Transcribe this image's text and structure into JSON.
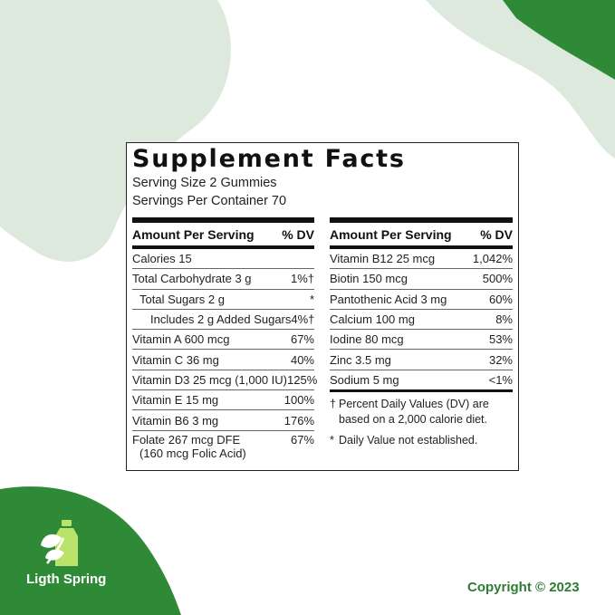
{
  "colors": {
    "light_green": "#dce9dc",
    "dark_green": "#2f8a37",
    "text_green": "#2e7d32"
  },
  "panel": {
    "title": "Supplement Facts",
    "serving_size": "Serving Size 2 Gummies",
    "servings_per_container": "Servings Per Container 70"
  },
  "left": {
    "header_label": "Amount Per Serving",
    "header_dv": "% DV",
    "rows": [
      {
        "name": "Calories 15",
        "dv": ""
      },
      {
        "name": "Total Carbohydrate 3 g",
        "dv": "1%†"
      },
      {
        "name": "Total Sugars 2 g",
        "dv": "*"
      },
      {
        "name": "Includes 2 g Added Sugars",
        "dv": "4%†"
      },
      {
        "name": "Vitamin A 600 mcg",
        "dv": "67%"
      },
      {
        "name": "Vitamin C 36 mg",
        "dv": "40%"
      },
      {
        "name": "Vitamin D3 25 mcg (1,000 IU)",
        "dv": "125%"
      },
      {
        "name": "Vitamin E 15 mg",
        "dv": "100%"
      },
      {
        "name": "Vitamin B6 3 mg",
        "dv": "176%"
      },
      {
        "name": "Folate 267 mcg DFE",
        "name2": "(160 mcg Folic Acid)",
        "dv": "67%"
      }
    ]
  },
  "right": {
    "header_label": "Amount Per Serving",
    "header_dv": "% DV",
    "rows": [
      {
        "name": "Vitamin B12 25 mcg",
        "dv": "1,042%"
      },
      {
        "name": "Biotin 150 mcg",
        "dv": "500%"
      },
      {
        "name": "Pantothenic Acid 3 mg",
        "dv": "60%"
      },
      {
        "name": "Calcium 100 mg",
        "dv": "8%"
      },
      {
        "name": "Iodine 80 mcg",
        "dv": "53%"
      },
      {
        "name": "Zinc 3.5 mg",
        "dv": "32%"
      },
      {
        "name": "Sodium 5 mg",
        "dv": "<1%"
      }
    ],
    "note1_sym": "†",
    "note1_line1": "Percent Daily Values (DV) are",
    "note1_line2": "based on a 2,000 calorie diet.",
    "note2_sym": "*",
    "note2": "Daily Value not established."
  },
  "brand": {
    "name": "Ligth Spring",
    "logo_icon": "leaf-bottle-icon"
  },
  "footer": {
    "copyright": "Copyright © 2023"
  }
}
